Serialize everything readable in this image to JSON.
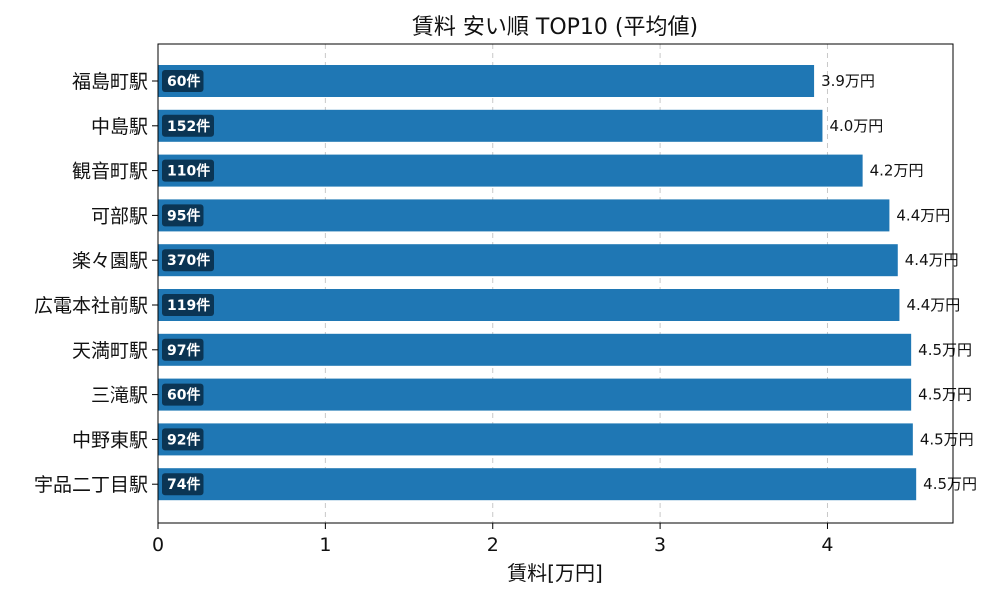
{
  "chart_data": {
    "type": "bar",
    "orientation": "horizontal",
    "title": "賃料 安い順 TOP10 (平均値)",
    "xlabel": "賃料[万円]",
    "ylabel": "",
    "xlim": [
      0,
      4.75
    ],
    "xticks": [
      0,
      1,
      2,
      3,
      4
    ],
    "grid": "x-dashed",
    "bar_color": "#1f77b4",
    "count_badge_color": "#0b3554",
    "categories": [
      "福島町駅",
      "中島駅",
      "観音町駅",
      "可部駅",
      "楽々園駅",
      "広電本社前駅",
      "天満町駅",
      "三滝駅",
      "中野東駅",
      "宇品二丁目駅"
    ],
    "values": [
      3.92,
      3.97,
      4.21,
      4.37,
      4.42,
      4.43,
      4.5,
      4.5,
      4.51,
      4.53
    ],
    "value_labels": [
      "3.9万円",
      "4.0万円",
      "4.2万円",
      "4.4万円",
      "4.4万円",
      "4.4万円",
      "4.5万円",
      "4.5万円",
      "4.5万円",
      "4.5万円"
    ],
    "count_labels": [
      "60件",
      "152件",
      "110件",
      "95件",
      "370件",
      "119件",
      "97件",
      "60件",
      "92件",
      "74件"
    ]
  }
}
